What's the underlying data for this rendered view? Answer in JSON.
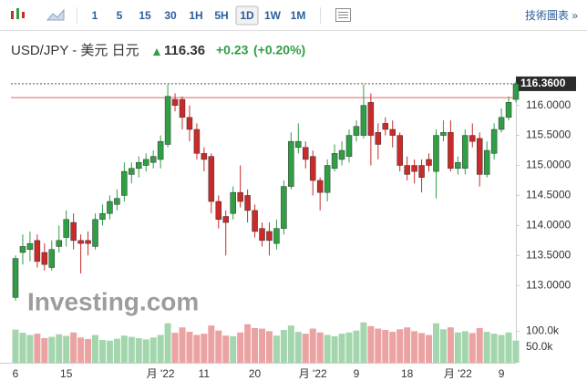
{
  "toolbar": {
    "intervals": [
      "1",
      "5",
      "15",
      "30",
      "1H",
      "5H",
      "1D",
      "1W",
      "1M"
    ],
    "active": 6,
    "link": "技術圖表 »"
  },
  "header": {
    "symbol": "USD/JPY - 美元 日元",
    "price": 116.36,
    "change": "+0.23",
    "change_pct": "(+0.20%)"
  },
  "chart_data": {
    "type": "candlestick",
    "watermark": "Investing.com",
    "up_color": "#2f9e44",
    "down_color": "#c92a2a",
    "up_volume_color": "#a3d6ad",
    "down_volume_color": "#eba2a2",
    "categories": [
      "6",
      null,
      null,
      null,
      null,
      null,
      null,
      "15",
      null,
      null,
      null,
      null,
      null,
      null,
      null,
      null,
      null,
      null,
      null,
      null,
      "月 '22",
      null,
      null,
      null,
      null,
      null,
      "11",
      null,
      null,
      null,
      null,
      null,
      null,
      "20",
      null,
      null,
      null,
      null,
      null,
      null,
      null,
      "月 '22",
      null,
      null,
      null,
      null,
      null,
      "9",
      null,
      null,
      null,
      null,
      null,
      null,
      "18",
      null,
      null,
      null,
      null,
      null,
      null,
      "月 '22",
      null,
      null,
      null,
      null,
      null,
      "9",
      null,
      null
    ],
    "open": [
      112.8,
      113.55,
      113.6,
      113.75,
      113.55,
      113.3,
      113.65,
      113.8,
      114.05,
      113.75,
      113.75,
      113.65,
      114.1,
      114.2,
      114.35,
      114.5,
      114.85,
      114.95,
      115.0,
      115.05,
      115.1,
      115.35,
      116.1,
      116.1,
      115.8,
      115.6,
      115.2,
      115.15,
      114.4,
      114.15,
      114.2,
      114.55,
      114.5,
      114.25,
      113.95,
      113.9,
      113.7,
      113.95,
      114.65,
      115.3,
      115.3,
      115.15,
      114.75,
      114.55,
      114.95,
      115.1,
      115.15,
      115.5,
      115.5,
      116.05,
      115.55,
      115.7,
      115.6,
      115.5,
      115.0,
      115.0,
      115.0,
      115.1,
      114.9,
      115.5,
      115.55,
      114.95,
      114.95,
      115.5,
      115.45,
      114.85,
      115.2,
      115.6,
      115.8,
      116.1
    ],
    "high": [
      113.5,
      113.85,
      113.9,
      113.85,
      113.7,
      113.75,
      114.0,
      114.25,
      114.2,
      113.85,
      113.9,
      114.2,
      114.35,
      114.5,
      114.6,
      115.05,
      115.05,
      115.15,
      115.2,
      115.25,
      115.5,
      116.35,
      116.2,
      116.15,
      116.0,
      115.7,
      115.3,
      115.2,
      114.5,
      114.25,
      114.65,
      115.0,
      114.6,
      114.35,
      114.05,
      114.05,
      114.1,
      114.75,
      115.55,
      115.7,
      115.4,
      115.25,
      114.8,
      115.1,
      115.35,
      115.4,
      115.6,
      115.75,
      116.35,
      116.2,
      115.7,
      115.8,
      115.75,
      115.55,
      115.15,
      115.1,
      115.1,
      115.2,
      115.6,
      115.75,
      115.75,
      115.15,
      115.6,
      115.7,
      115.55,
      115.4,
      115.7,
      115.95,
      116.15,
      116.4
    ],
    "low": [
      112.75,
      113.35,
      113.4,
      113.3,
      113.25,
      113.25,
      113.55,
      113.65,
      113.6,
      113.2,
      113.5,
      113.6,
      114.0,
      114.1,
      114.25,
      114.4,
      114.7,
      114.8,
      114.9,
      114.95,
      114.95,
      115.3,
      115.9,
      115.6,
      115.4,
      115.1,
      114.9,
      114.2,
      113.95,
      113.5,
      114.1,
      114.3,
      114.05,
      113.8,
      113.65,
      113.5,
      113.6,
      113.85,
      114.6,
      115.2,
      114.95,
      114.5,
      114.25,
      114.4,
      114.9,
      115.0,
      115.05,
      115.4,
      115.45,
      115.0,
      115.1,
      115.5,
      115.3,
      114.9,
      114.75,
      114.7,
      114.55,
      114.9,
      114.45,
      115.4,
      114.9,
      114.85,
      114.85,
      115.3,
      114.65,
      114.8,
      115.1,
      115.55,
      115.75,
      116.05
    ],
    "close": [
      113.45,
      113.65,
      113.7,
      113.4,
      113.35,
      113.6,
      113.75,
      114.1,
      113.75,
      113.7,
      113.7,
      114.1,
      114.2,
      114.4,
      114.45,
      114.9,
      114.95,
      115.05,
      115.1,
      115.15,
      115.4,
      116.15,
      116.0,
      115.8,
      115.6,
      115.2,
      115.1,
      114.4,
      114.1,
      114.05,
      114.55,
      114.4,
      114.25,
      113.9,
      113.75,
      113.75,
      113.95,
      114.65,
      115.4,
      115.4,
      115.1,
      114.75,
      114.55,
      115.0,
      115.2,
      115.25,
      115.5,
      115.65,
      116.0,
      115.5,
      115.35,
      115.6,
      115.5,
      115.0,
      114.85,
      114.9,
      114.8,
      115.0,
      115.5,
      115.55,
      114.95,
      115.05,
      115.5,
      115.4,
      114.85,
      115.25,
      115.6,
      115.8,
      116.05,
      116.36
    ],
    "volume": [
      105000,
      95000,
      88000,
      92000,
      78000,
      82000,
      90000,
      85000,
      96000,
      80000,
      75000,
      88000,
      72000,
      70000,
      76000,
      86000,
      82000,
      78000,
      74000,
      80000,
      88000,
      125000,
      95000,
      112000,
      98000,
      88000,
      92000,
      118000,
      102000,
      86000,
      84000,
      96000,
      122000,
      110000,
      108000,
      100000,
      86000,
      104000,
      118000,
      98000,
      92000,
      108000,
      96000,
      88000,
      84000,
      92000,
      96000,
      102000,
      128000,
      116000,
      108000,
      104000,
      98000,
      106000,
      112000,
      100000,
      94000,
      88000,
      125000,
      106000,
      112000,
      96000,
      100000,
      94000,
      110000,
      98000,
      92000,
      88000,
      96000,
      70000
    ],
    "ylim": [
      112.7,
      116.45
    ],
    "yticks": [
      {
        "value": 113,
        "label": "113.0000"
      },
      {
        "value": 113.5,
        "label": "113.5000"
      },
      {
        "value": 114,
        "label": "114.0000"
      },
      {
        "value": 114.5,
        "label": "114.5000"
      },
      {
        "value": 115,
        "label": "115.0000"
      },
      {
        "value": 115.5,
        "label": "115.5000"
      },
      {
        "value": 116,
        "label": "116.0000"
      }
    ],
    "last_price": {
      "value": 116.36,
      "label": "116.3600"
    },
    "prev_close": 116.13,
    "volume_ylim": [
      0,
      153000
    ],
    "volume_ticks": [
      {
        "value": 100000,
        "label": "100.0k"
      },
      {
        "value": 50000,
        "label": "50.0k"
      }
    ]
  }
}
